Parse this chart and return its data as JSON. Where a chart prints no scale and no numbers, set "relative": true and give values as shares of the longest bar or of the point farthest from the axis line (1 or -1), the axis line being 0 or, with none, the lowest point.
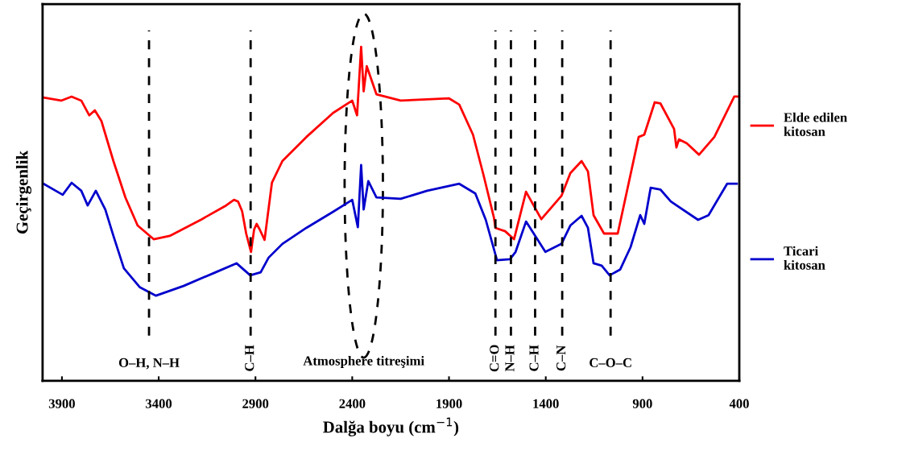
{
  "chart_data": {
    "type": "line",
    "relative": true,
    "xlabel": "Dalğa boyu (cm$^{−1}$)",
    "ylabel": "Geçirgenlik",
    "xlim": [
      4000,
      400
    ],
    "xticks": [
      3900,
      3400,
      2900,
      2400,
      1900,
      1400,
      900,
      400
    ],
    "legend": "right",
    "grid": false,
    "line_style": "solid",
    "marker": "none",
    "series": [
      {
        "name": "Elde edilen\nkitosan",
        "color": "#ff0000",
        "x": [
          3995,
          3904,
          3850,
          3800,
          3759,
          3730,
          3696,
          3634,
          3572,
          3509,
          3426,
          3343,
          3177,
          3052,
          3011,
          2990,
          2969,
          2948,
          2923,
          2907,
          2894,
          2878,
          2853,
          2815,
          2761,
          2637,
          2499,
          2400,
          2375,
          2354,
          2341,
          2325,
          2275,
          2150,
          1901,
          1847,
          1776,
          1722,
          1668,
          1660,
          1610,
          1564,
          1502,
          1423,
          1319,
          1273,
          1215,
          1182,
          1153,
          1099,
          1028,
          920,
          891,
          837,
          808,
          737,
          725,
          712,
          671,
          608,
          529,
          426,
          400
        ],
        "values": [
          0.848,
          0.839,
          0.851,
          0.839,
          0.795,
          0.81,
          0.778,
          0.658,
          0.549,
          0.465,
          0.424,
          0.434,
          0.484,
          0.525,
          0.542,
          0.537,
          0.508,
          0.441,
          0.386,
          0.453,
          0.47,
          0.453,
          0.422,
          0.593,
          0.658,
          0.73,
          0.802,
          0.839,
          0.795,
          1.0,
          0.867,
          0.942,
          0.858,
          0.839,
          0.846,
          0.827,
          0.737,
          0.617,
          0.489,
          0.458,
          0.448,
          0.424,
          0.566,
          0.484,
          0.554,
          0.622,
          0.658,
          0.627,
          0.496,
          0.441,
          0.441,
          0.73,
          0.737,
          0.834,
          0.831,
          0.754,
          0.699,
          0.723,
          0.711,
          0.677,
          0.73,
          0.851,
          0.851
        ]
      },
      {
        "name": "Ticari\nkitosan",
        "color": "#0000cc",
        "x": [
          3995,
          3896,
          3850,
          3800,
          3767,
          3725,
          3676,
          3634,
          3580,
          3497,
          3414,
          3272,
          3106,
          2998,
          2927,
          2873,
          2832,
          2761,
          2637,
          2499,
          2400,
          2371,
          2354,
          2341,
          2317,
          2275,
          2150,
          2013,
          1847,
          1764,
          1710,
          1652,
          1585,
          1556,
          1502,
          1402,
          1319,
          1273,
          1215,
          1182,
          1153,
          1111,
          1070,
          1016,
          962,
          912,
          891,
          858,
          808,
          754,
          613,
          559,
          463,
          413
        ],
        "values": [
          0.59,
          0.557,
          0.593,
          0.569,
          0.525,
          0.569,
          0.513,
          0.434,
          0.337,
          0.28,
          0.255,
          0.284,
          0.325,
          0.352,
          0.316,
          0.325,
          0.369,
          0.41,
          0.458,
          0.506,
          0.542,
          0.46,
          0.646,
          0.513,
          0.598,
          0.549,
          0.545,
          0.569,
          0.59,
          0.561,
          0.482,
          0.361,
          0.364,
          0.386,
          0.477,
          0.386,
          0.41,
          0.465,
          0.494,
          0.458,
          0.352,
          0.345,
          0.316,
          0.333,
          0.4,
          0.496,
          0.47,
          0.578,
          0.573,
          0.537,
          0.482,
          0.496,
          0.59,
          0.59
        ]
      }
    ],
    "ref_lines": [
      {
        "axis": "x",
        "value": 3450,
        "label": "O–H, N–H",
        "color": "#000000",
        "line_style": "dashed"
      },
      {
        "axis": "x",
        "value": 2925,
        "label": "C–H",
        "color": "#000000",
        "line_style": "dashed"
      },
      {
        "axis": "x",
        "value": 1660,
        "label": "C=O",
        "color": "#000000",
        "line_style": "dashed"
      },
      {
        "axis": "x",
        "value": 1580,
        "label": "N–H",
        "color": "#000000",
        "line_style": "dashed"
      },
      {
        "axis": "x",
        "value": 1455,
        "label": "C–H",
        "color": "#000000",
        "line_style": "dashed"
      },
      {
        "axis": "x",
        "value": 1315,
        "label": "C–N",
        "color": "#000000",
        "line_style": "dashed"
      },
      {
        "axis": "x",
        "value": 1065,
        "label": "C–O–C",
        "color": "#000000",
        "line_style": "dashed"
      }
    ],
    "annotations": [
      "Atmosphere titreşimi"
    ]
  }
}
